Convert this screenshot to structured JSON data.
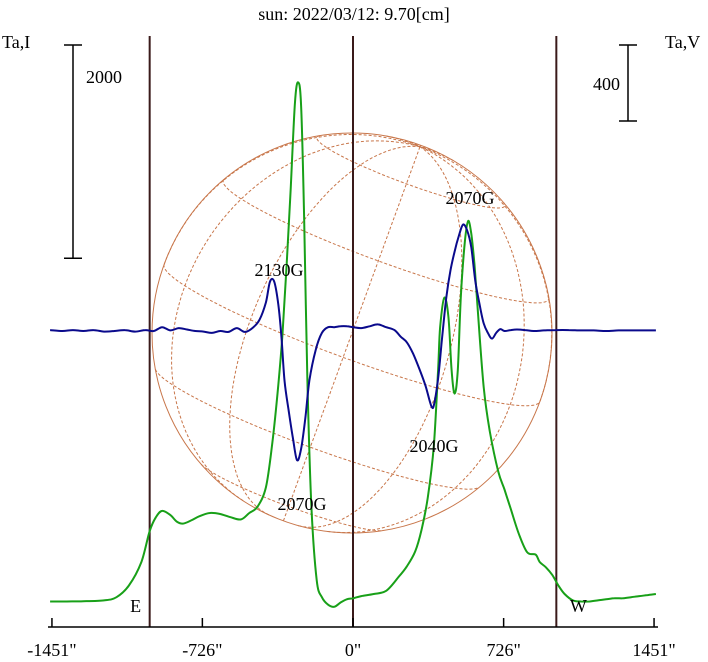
{
  "title": "sun: 2022/03/12: 9.70[cm]",
  "colors": {
    "title": "#1a1a7a",
    "stokes_i": "#18a018",
    "stokes_v": "#0a0a8c",
    "disk_grid": "#c8764a",
    "frame": "#000000",
    "limb_lines": "#3a1a1a"
  },
  "chart_data": {
    "type": "line",
    "title": "sun: 2022/03/12: 9.70[cm]",
    "xlabel": "",
    "ylabel_left": "Ta,I",
    "ylabel_right": "Ta,V",
    "x_ticks": [
      {
        "value": -1451,
        "label": "-1451\""
      },
      {
        "value": -726,
        "label": "-726\""
      },
      {
        "value": 0,
        "label": "0\""
      },
      {
        "value": 726,
        "label": "726\""
      },
      {
        "value": 1451,
        "label": "1451\""
      }
    ],
    "xlim": [
      -1470,
      1470
    ],
    "limb_markers": [
      {
        "x": -980,
        "label": "E"
      },
      {
        "x": 0,
        "label": ""
      },
      {
        "x": 980,
        "label": "W"
      }
    ],
    "scale_bars": [
      {
        "axis": "left",
        "label": "2000",
        "value": 2000
      },
      {
        "axis": "right",
        "label": "400",
        "value": 400
      }
    ],
    "annotations": [
      {
        "text": "2130G",
        "x": -360,
        "series": "V"
      },
      {
        "text": "2070G",
        "x": -240,
        "series": "V"
      },
      {
        "text": "2040G",
        "x": 380,
        "series": "V"
      },
      {
        "text": "2070G",
        "x": 560,
        "series": "V"
      }
    ],
    "series": [
      {
        "name": "I",
        "axis": "left",
        "x": [
          -1460,
          -1380,
          -1300,
          -1200,
          -1140,
          -1080,
          -1020,
          -980,
          -950,
          -920,
          -880,
          -850,
          -820,
          -780,
          -740,
          -690,
          -640,
          -590,
          -540,
          -500,
          -460,
          -420,
          -390,
          -360,
          -340,
          -320,
          -300,
          -280,
          -265,
          -250,
          -235,
          -220,
          -200,
          -175,
          -150,
          -120,
          -90,
          -60,
          -30,
          0,
          40,
          100,
          160,
          220,
          260,
          300,
          330,
          360,
          390,
          410,
          420,
          440,
          460,
          475,
          490,
          505,
          520,
          540,
          555,
          570,
          585,
          600,
          630,
          660,
          700,
          730,
          760,
          800,
          840,
          880,
          900,
          930,
          960,
          990,
          1020,
          1060,
          1100,
          1140,
          1180,
          1220,
          1260,
          1300,
          1340,
          1380,
          1420,
          1460
        ],
        "values": [
          -70,
          -70,
          -68,
          -60,
          -30,
          80,
          300,
          590,
          720,
          780,
          740,
          680,
          660,
          690,
          730,
          760,
          750,
          720,
          700,
          760,
          820,
          1000,
          1400,
          1960,
          2440,
          3080,
          3820,
          4600,
          4800,
          4580,
          3500,
          2000,
          800,
          130,
          -30,
          -100,
          -120,
          -80,
          -50,
          -40,
          -20,
          0,
          30,
          160,
          260,
          400,
          600,
          900,
          1400,
          2100,
          2500,
          2780,
          2600,
          2100,
          1880,
          2100,
          2800,
          3320,
          3500,
          3380,
          3100,
          2700,
          1940,
          1520,
          1150,
          980,
          800,
          560,
          390,
          370,
          300,
          250,
          180,
          80,
          0,
          -60,
          -70,
          -70,
          -60,
          -50,
          -40,
          -40,
          -30,
          -20,
          -10,
          0
        ]
      },
      {
        "name": "V",
        "axis": "right",
        "x": [
          -1460,
          -1400,
          -1350,
          -1300,
          -1250,
          -1200,
          -1150,
          -1100,
          -1050,
          -1000,
          -960,
          -920,
          -880,
          -840,
          -800,
          -760,
          -720,
          -680,
          -640,
          -600,
          -560,
          -520,
          -480,
          -450,
          -420,
          -400,
          -380,
          -360,
          -345,
          -330,
          -310,
          -290,
          -270,
          -250,
          -230,
          -210,
          -180,
          -150,
          -120,
          -90,
          -60,
          -30,
          0,
          40,
          80,
          120,
          160,
          200,
          230,
          260,
          290,
          320,
          350,
          370,
          380,
          390,
          410,
          430,
          450,
          470,
          490,
          510,
          530,
          550,
          570,
          590,
          610,
          630,
          650,
          670,
          690,
          710,
          730,
          760,
          790,
          830,
          870,
          920,
          980,
          1040,
          1100,
          1160,
          1220,
          1280,
          1340,
          1400,
          1460
        ],
        "values": [
          5,
          0,
          5,
          0,
          5,
          -3,
          0,
          5,
          -3,
          5,
          0,
          20,
          3,
          15,
          8,
          0,
          -3,
          -10,
          0,
          -5,
          15,
          -5,
          20,
          60,
          150,
          260,
          260,
          140,
          -30,
          -260,
          -420,
          -560,
          -680,
          -620,
          -460,
          -260,
          -100,
          -10,
          20,
          20,
          25,
          25,
          20,
          15,
          25,
          35,
          20,
          5,
          -30,
          -60,
          -120,
          -200,
          -290,
          -370,
          -400,
          -390,
          -250,
          -30,
          180,
          320,
          420,
          500,
          560,
          530,
          440,
          260,
          140,
          40,
          -10,
          -40,
          -10,
          10,
          0,
          5,
          8,
          5,
          0,
          3,
          5,
          5,
          3,
          3,
          0,
          3,
          3,
          3,
          3
        ]
      }
    ]
  }
}
